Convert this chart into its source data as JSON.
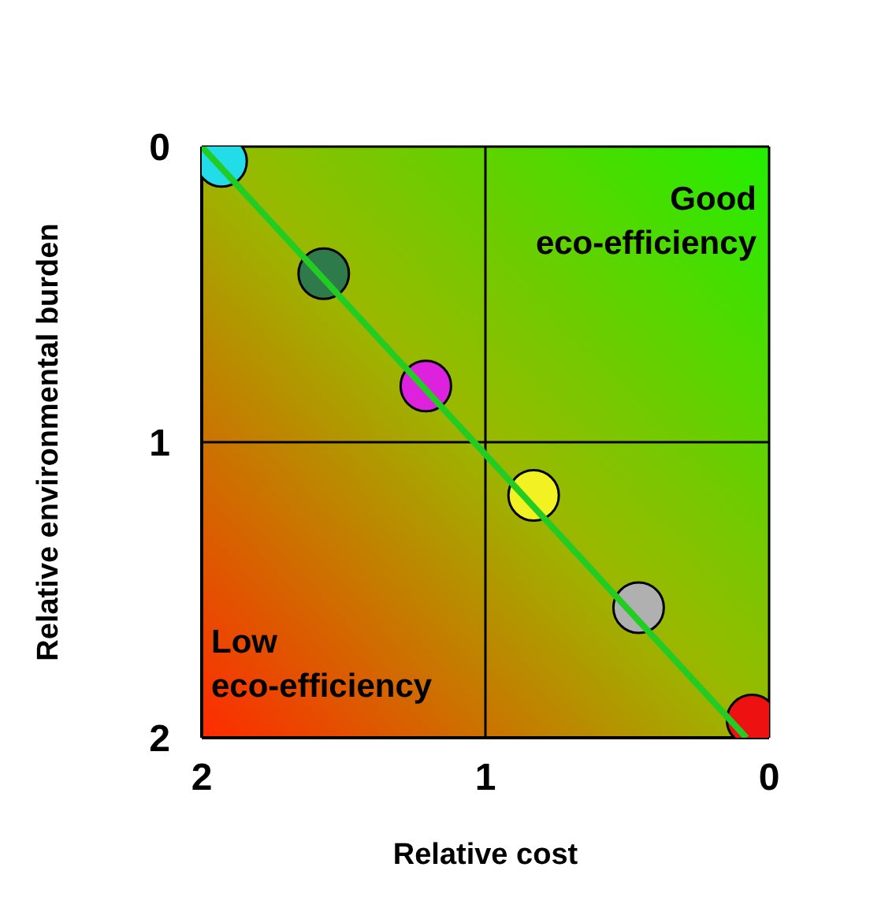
{
  "chart_data": {
    "type": "scatter",
    "xlabel": "Relative cost",
    "ylabel": "Relative environmental burden",
    "xlim": [
      2,
      0
    ],
    "ylim": [
      2,
      0
    ],
    "xticks": [
      2,
      1,
      0
    ],
    "yticks": [
      0,
      1,
      2
    ],
    "grid": true,
    "annotations": [
      "Good eco-efficiency",
      "Low eco-efficiency"
    ],
    "series": [
      {
        "type": "scatter",
        "marker": "circle",
        "x": [
          1.93,
          1.57,
          1.21,
          0.83,
          0.46,
          0.06
        ],
        "values": [
          0.05,
          0.43,
          0.81,
          1.18,
          1.56,
          1.94
        ],
        "colors": [
          "#22dde8",
          "#2e7a4a",
          "#dd22dd",
          "#f2f222",
          "#b0b0b0",
          "#ee1111"
        ]
      },
      {
        "type": "line",
        "marker": "none",
        "color": "#22cc22",
        "x": [
          2,
          0.08
        ],
        "values": [
          0,
          2
        ]
      }
    ]
  }
}
